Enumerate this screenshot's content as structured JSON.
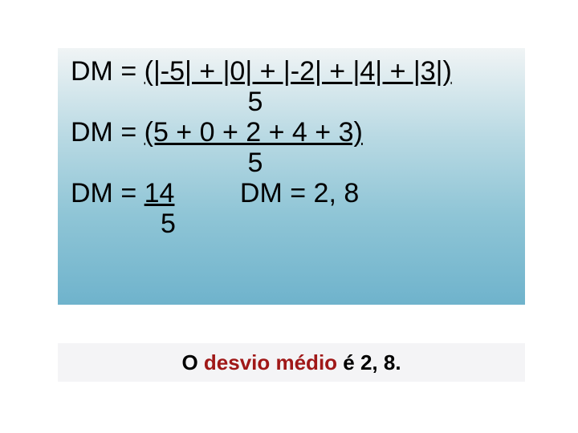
{
  "box": {
    "background_gradient": [
      "#f0f4f5",
      "#b8d9e3",
      "#8fc5d6",
      "#6fb3cc"
    ],
    "text_color": "#000000",
    "font_size_pt": 26,
    "line1_numerator": "DM = (|-5| + |0| + |-2| + |4| + |3|)",
    "line1_denominator": "5",
    "line2_numerator": "DM = (5 + 0 + 2 + 4 + 3)",
    "line2_denominator": "5",
    "line3_left_top": "DM = ",
    "line3_left_num": "14",
    "line3_left_bottom": "5",
    "line3_right": "DM = 2, 8"
  },
  "answer": {
    "background_color": "#f4f4f6",
    "text_color": "#000000",
    "accent_color": "#a01818",
    "font_size_pt": 20,
    "prefix": "O ",
    "highlight": "desvio médio",
    "suffix": " é 2, 8."
  }
}
